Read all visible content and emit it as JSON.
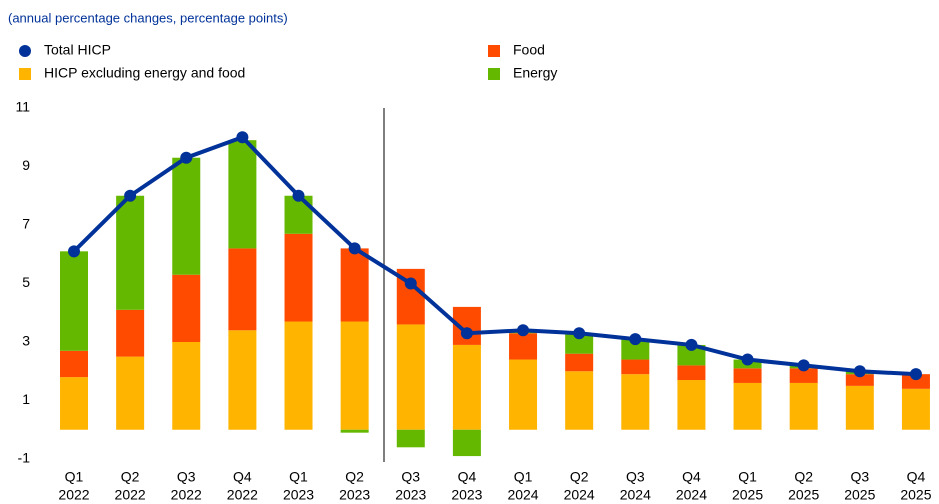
{
  "chart_data": {
    "type": "bar",
    "stacked": true,
    "subtitle": "(annual percentage changes, percentage points)",
    "categories": [
      [
        "Q1",
        "2022"
      ],
      [
        "Q2",
        "2022"
      ],
      [
        "Q3",
        "2022"
      ],
      [
        "Q4",
        "2022"
      ],
      [
        "Q1",
        "2023"
      ],
      [
        "Q2",
        "2023"
      ],
      [
        "Q3",
        "2023"
      ],
      [
        "Q4",
        "2023"
      ],
      [
        "Q1",
        "2024"
      ],
      [
        "Q2",
        "2024"
      ],
      [
        "Q3",
        "2024"
      ],
      [
        "Q4",
        "2024"
      ],
      [
        "Q1",
        "2025"
      ],
      [
        "Q2",
        "2025"
      ],
      [
        "Q3",
        "2025"
      ],
      [
        "Q4",
        "2025"
      ]
    ],
    "series": [
      {
        "name": "Total HICP",
        "type": "line",
        "color": "#003299",
        "values": [
          6.1,
          8.0,
          9.3,
          10.0,
          8.0,
          6.2,
          5.0,
          3.3,
          3.4,
          3.3,
          3.1,
          2.9,
          2.4,
          2.2,
          2.0,
          1.9
        ]
      },
      {
        "name": "HICP excluding energy and food",
        "type": "bar",
        "color": "#ffb400",
        "values": [
          1.8,
          2.5,
          3.0,
          3.4,
          3.7,
          3.7,
          3.6,
          2.9,
          2.4,
          2.0,
          1.9,
          1.7,
          1.6,
          1.6,
          1.5,
          1.4
        ]
      },
      {
        "name": "Food",
        "type": "bar",
        "color": "#ff4b00",
        "values": [
          0.9,
          1.6,
          2.3,
          2.8,
          3.0,
          2.5,
          1.9,
          1.3,
          0.9,
          0.6,
          0.5,
          0.5,
          0.5,
          0.5,
          0.4,
          0.5
        ]
      },
      {
        "name": "Energy",
        "type": "bar",
        "color": "#65b800",
        "values": [
          3.4,
          3.9,
          4.0,
          3.7,
          1.3,
          -0.1,
          -0.6,
          -0.9,
          0.1,
          0.7,
          0.7,
          0.7,
          0.3,
          0.1,
          0.1,
          0.0
        ]
      }
    ],
    "ylim": [
      -1,
      11
    ],
    "yticks": [
      -1,
      1,
      3,
      5,
      7,
      9,
      11
    ],
    "grid": false
  }
}
